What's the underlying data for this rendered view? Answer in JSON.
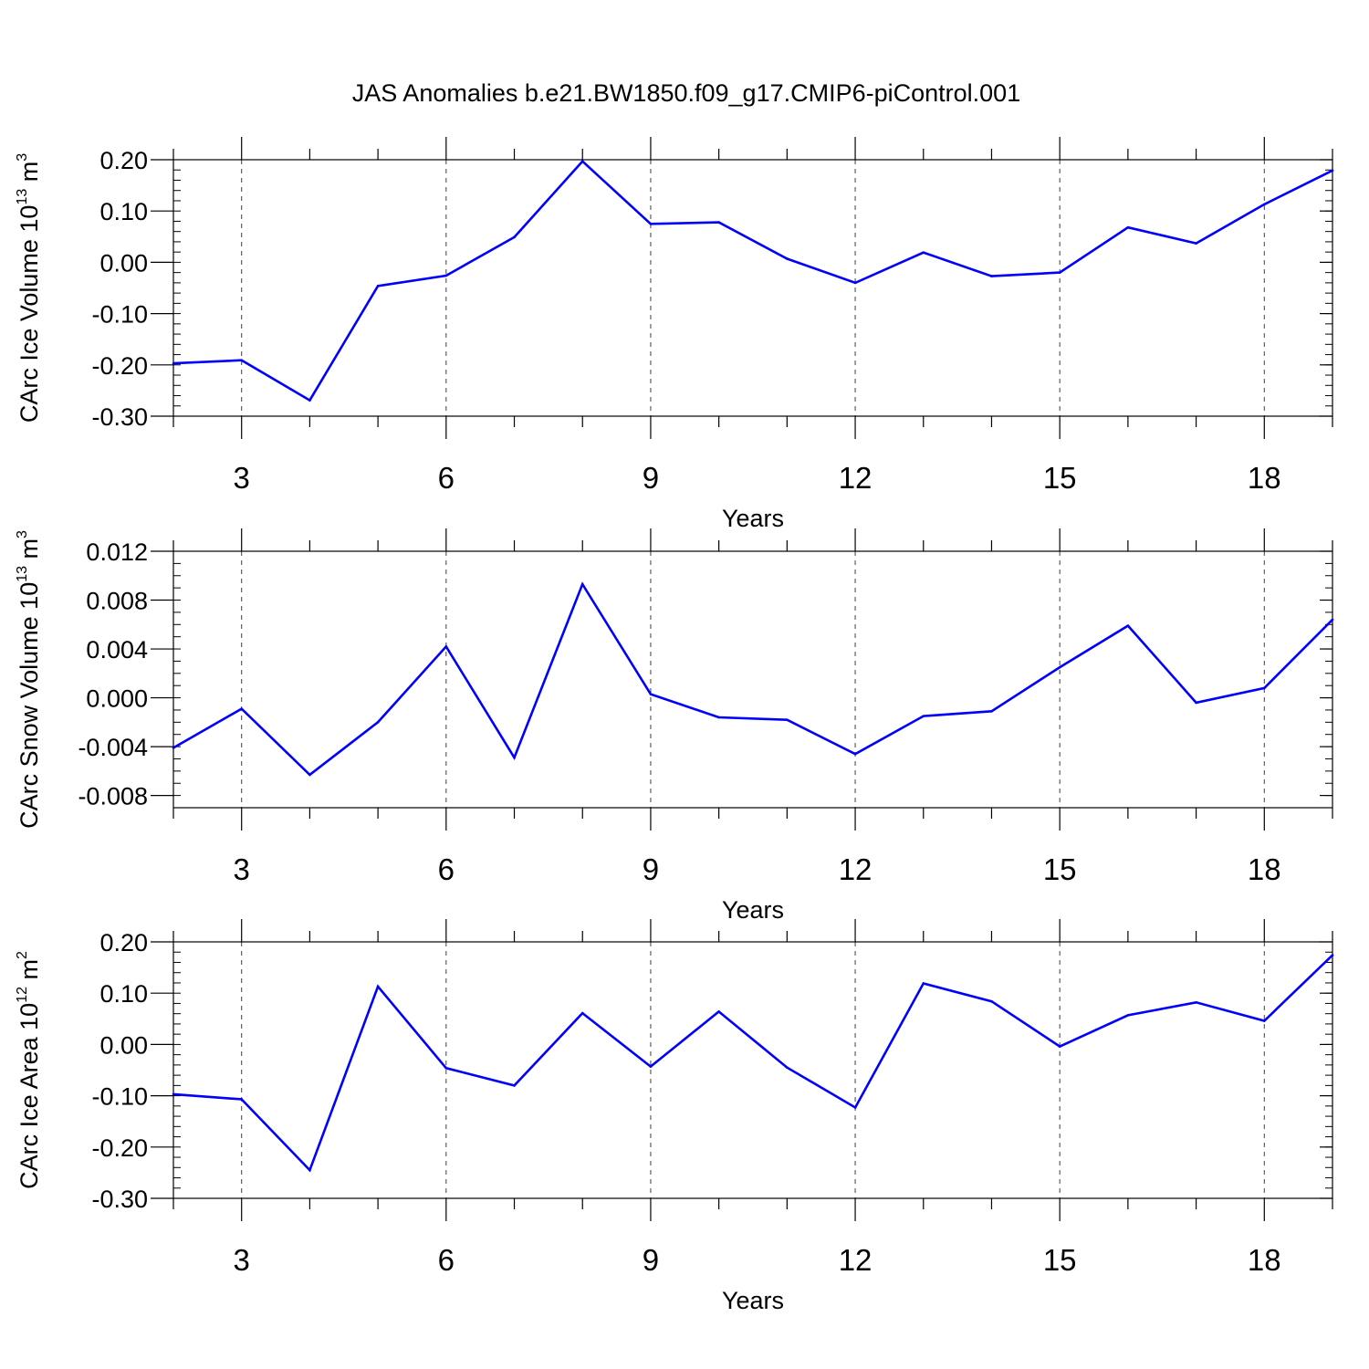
{
  "title": "JAS Anomalies b.e21.BW1850.f09_g17.CMIP6-piControl.001",
  "colors": {
    "line": "#0000ff",
    "axis": "#000000",
    "grid": "#000000"
  },
  "chart_data": [
    {
      "type": "line",
      "name": "ice-volume",
      "ylabel": {
        "main": "CArc Ice Volume 10",
        "sup": "13",
        "unit": "m",
        "unit_sup": "3"
      },
      "xlabel": "Years",
      "xlim": [
        2,
        19
      ],
      "ylim": [
        -0.3,
        0.2
      ],
      "yticks": [
        -0.3,
        -0.2,
        -0.1,
        0.0,
        0.1,
        0.2
      ],
      "ytick_labels": [
        "-0.30",
        "-0.20",
        "-0.10",
        "0.00",
        "0.10",
        "0.20"
      ],
      "yminor_step": 0.02,
      "xticks": [
        3,
        6,
        9,
        12,
        15,
        18
      ],
      "xtick_labels": [
        "3",
        "6",
        "9",
        "12",
        "15",
        "18"
      ],
      "grid_x": [
        3,
        6,
        9,
        12,
        15,
        18
      ],
      "x": [
        2,
        3,
        4,
        5,
        6,
        7,
        8,
        9,
        10,
        11,
        12,
        13,
        14,
        15,
        16,
        17,
        18,
        19
      ],
      "values": [
        -0.197,
        -0.191,
        -0.269,
        -0.046,
        -0.026,
        0.049,
        0.197,
        0.075,
        0.078,
        0.007,
        -0.04,
        0.019,
        -0.027,
        -0.02,
        0.068,
        0.037,
        0.113,
        0.179
      ]
    },
    {
      "type": "line",
      "name": "snow-volume",
      "ylabel": {
        "main": "CArc Snow Volume 10",
        "sup": "13",
        "unit": "m",
        "unit_sup": "3"
      },
      "xlabel": "Years",
      "xlim": [
        2,
        19
      ],
      "ylim": [
        -0.009,
        0.012
      ],
      "yticks": [
        -0.008,
        -0.004,
        0.0,
        0.004,
        0.008,
        0.012
      ],
      "ytick_labels": [
        "-0.008",
        "-0.004",
        "0.000",
        "0.004",
        "0.008",
        "0.012"
      ],
      "yminor_step": 0.001,
      "xticks": [
        3,
        6,
        9,
        12,
        15,
        18
      ],
      "xtick_labels": [
        "3",
        "6",
        "9",
        "12",
        "15",
        "18"
      ],
      "grid_x": [
        3,
        6,
        9,
        12,
        15,
        18
      ],
      "x": [
        2,
        3,
        4,
        5,
        6,
        7,
        8,
        9,
        10,
        11,
        12,
        13,
        14,
        15,
        16,
        17,
        18,
        19
      ],
      "values": [
        -0.0041,
        -0.0009,
        -0.0063,
        -0.002,
        0.0042,
        -0.0049,
        0.0093,
        0.0003,
        -0.0016,
        -0.0018,
        -0.0046,
        -0.0015,
        -0.0011,
        0.0025,
        0.0059,
        -0.0004,
        0.0008,
        0.0064
      ]
    },
    {
      "type": "line",
      "name": "ice-area",
      "ylabel": {
        "main": "CArc Ice Area 10",
        "sup": "12",
        "unit": "m",
        "unit_sup": "2"
      },
      "xlabel": "Years",
      "xlim": [
        2,
        19
      ],
      "ylim": [
        -0.3,
        0.2
      ],
      "yticks": [
        -0.3,
        -0.2,
        -0.1,
        0.0,
        0.1,
        0.2
      ],
      "ytick_labels": [
        "-0.30",
        "-0.20",
        "-0.10",
        "0.00",
        "0.10",
        "0.20"
      ],
      "yminor_step": 0.02,
      "xticks": [
        3,
        6,
        9,
        12,
        15,
        18
      ],
      "xtick_labels": [
        "3",
        "6",
        "9",
        "12",
        "15",
        "18"
      ],
      "grid_x": [
        3,
        6,
        9,
        12,
        15,
        18
      ],
      "x": [
        2,
        3,
        4,
        5,
        6,
        7,
        8,
        9,
        10,
        11,
        12,
        13,
        14,
        15,
        16,
        17,
        18,
        19
      ],
      "values": [
        -0.097,
        -0.107,
        -0.245,
        0.113,
        -0.046,
        -0.08,
        0.061,
        -0.043,
        0.064,
        -0.045,
        -0.123,
        0.119,
        0.084,
        -0.004,
        0.057,
        0.082,
        0.046,
        0.174
      ]
    }
  ]
}
